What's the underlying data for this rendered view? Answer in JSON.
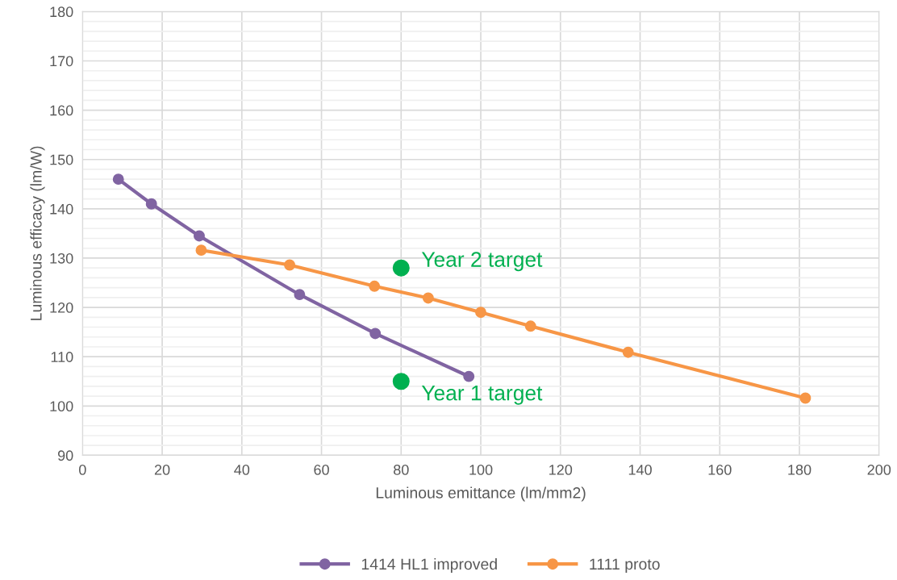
{
  "chart_data": {
    "type": "line",
    "xlabel": "Luminous emittance (lm/mm2)",
    "ylabel": "Luminous efficacy (lm/W)",
    "xlim": [
      0,
      200
    ],
    "xticks": [
      0,
      20,
      40,
      60,
      80,
      100,
      120,
      140,
      160,
      180,
      200
    ],
    "ylim": [
      90,
      180
    ],
    "yticks": [
      90,
      {
        "value": 92,
        "label": null
      },
      {
        "value": 94,
        "label": null
      },
      {
        "value": 96,
        "label": null
      },
      {
        "value": 98,
        "label": null
      },
      100,
      {
        "value": 102,
        "label": null
      },
      {
        "value": 104,
        "label": null
      },
      {
        "value": 106,
        "label": null
      },
      {
        "value": 108,
        "label": null
      },
      110,
      {
        "value": 112,
        "label": null
      },
      {
        "value": 114,
        "label": null
      },
      {
        "value": 116,
        "label": null
      },
      {
        "value": 118,
        "label": null
      },
      120,
      {
        "value": 122,
        "label": null
      },
      {
        "value": 124,
        "label": null
      },
      {
        "value": 126,
        "label": null
      },
      {
        "value": 128,
        "label": null
      },
      130,
      {
        "value": 132,
        "label": null
      },
      {
        "value": 134,
        "label": null
      },
      {
        "value": 136,
        "label": null
      },
      {
        "value": 138,
        "label": null
      },
      140,
      {
        "value": 142,
        "label": null
      },
      {
        "value": 144,
        "label": null
      },
      {
        "value": 146,
        "label": null
      },
      {
        "value": 148,
        "label": null
      },
      150,
      {
        "value": 152,
        "label": null
      },
      {
        "value": 154,
        "label": null
      },
      {
        "value": 156,
        "label": null
      },
      {
        "value": 158,
        "label": null
      },
      160,
      {
        "value": 162,
        "label": null
      },
      {
        "value": 164,
        "label": null
      },
      {
        "value": 166,
        "label": null
      },
      {
        "value": 168,
        "label": null
      },
      170,
      {
        "value": 172,
        "label": null
      },
      {
        "value": 174,
        "label": null
      },
      {
        "value": 176,
        "label": null
      },
      {
        "value": 178,
        "label": null
      },
      180
    ],
    "grid": true,
    "legend": "bottom",
    "marker": "circle",
    "line_style": "solid",
    "series": [
      {
        "name": "1414 HL1 improved",
        "color": "#8064a2",
        "x": [
          9,
          17.3,
          29.3,
          54.5,
          73.5,
          97
        ],
        "values": [
          146,
          141,
          134.5,
          122.6,
          114.7,
          106
        ]
      },
      {
        "name": "1111 proto",
        "color": "#f79646",
        "x": [
          29.8,
          52,
          73.3,
          86.8,
          100,
          112.5,
          137,
          181.5
        ],
        "values": [
          131.6,
          128.6,
          124.3,
          121.9,
          119,
          116.2,
          110.9,
          101.6
        ]
      },
      {
        "type": "scatter",
        "color": "#00b050",
        "x": [
          80,
          80
        ],
        "values": [
          128,
          105
        ]
      }
    ],
    "annotations": [
      {
        "text": "Year 2 target",
        "x": 80,
        "y": 128
      },
      {
        "text": "Year 1 target",
        "x": 80,
        "y": 105
      }
    ]
  }
}
